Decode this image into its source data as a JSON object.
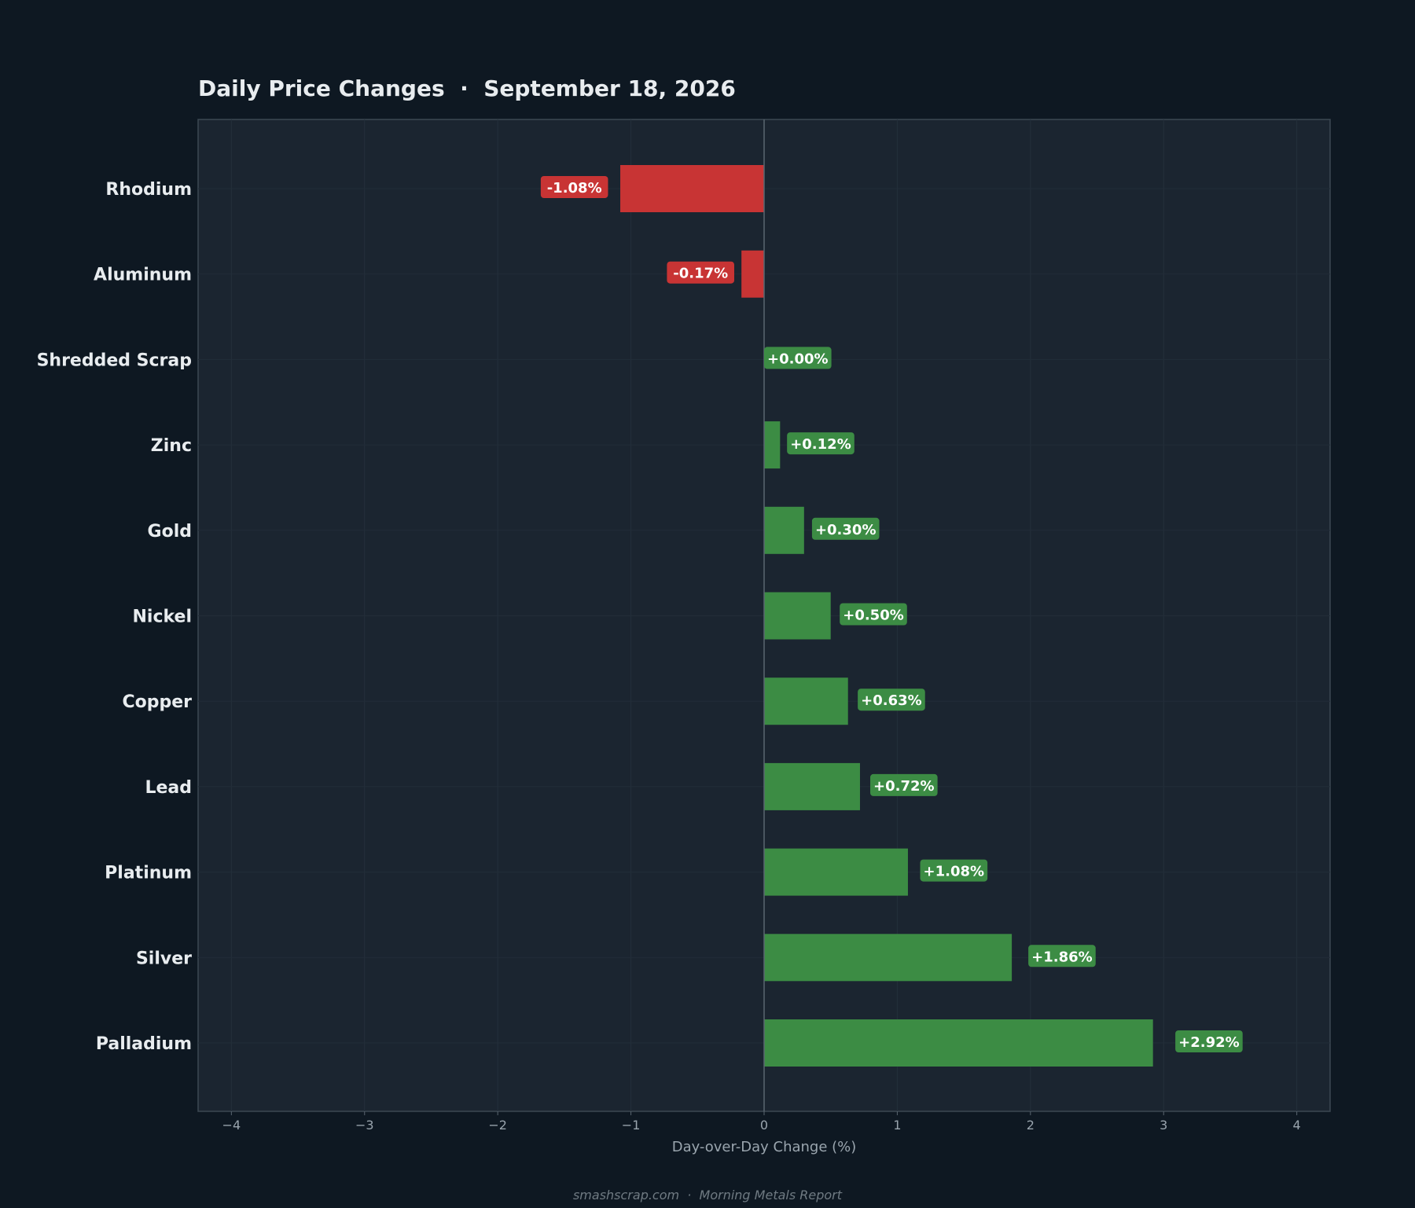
{
  "chart_data": {
    "type": "bar",
    "orientation": "horizontal",
    "title": "Daily Price Changes  ·  September 18, 2026",
    "xlabel": "Day-over-Day Change (%)",
    "ylabel": "",
    "xlim": [
      -4.25,
      4.25
    ],
    "xticks": [
      -4,
      -3,
      -2,
      -1,
      0,
      1,
      2,
      3,
      4
    ],
    "xtick_labels": [
      "−4",
      "−3",
      "−2",
      "−1",
      "0",
      "1",
      "2",
      "3",
      "4"
    ],
    "categories": [
      "Rhodium",
      "Aluminum",
      "Shredded Scrap",
      "Zinc",
      "Gold",
      "Nickel",
      "Copper",
      "Lead",
      "Platinum",
      "Silver",
      "Palladium"
    ],
    "values": [
      -1.08,
      -0.17,
      0.0,
      0.12,
      0.3,
      0.5,
      0.63,
      0.72,
      1.08,
      1.86,
      2.92
    ],
    "value_labels": [
      "-1.08%",
      "-0.17%",
      "+0.00%",
      "+0.12%",
      "+0.30%",
      "+0.50%",
      "+0.63%",
      "+0.72%",
      "+1.08%",
      "+1.86%",
      "+2.92%"
    ],
    "grid": true,
    "legend": "none",
    "colors": {
      "positive": "#3c8c44",
      "negative": "#c83434",
      "page_background": "#0e1822",
      "plot_background": "#1b2530",
      "text": "#e8ecef",
      "muted_text": "#9aa5ae",
      "footer_text": "#6f7a82"
    }
  },
  "footer": "smashscrap.com  ·  Morning Metals Report"
}
